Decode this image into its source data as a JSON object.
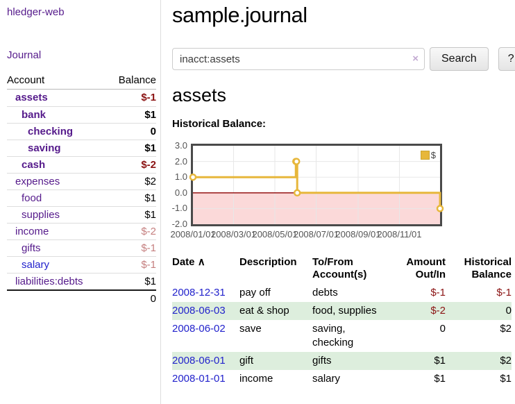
{
  "app": {
    "title": "hledger-web",
    "nav_journal": "Journal"
  },
  "colors": {
    "link_purple": "#551A8B",
    "link_blue": "#2222cc",
    "negative_strong": "#8b1313",
    "negative_soft": "#c57f7f",
    "row_green": "#ddeedd",
    "chart_line": "#E7B73B",
    "chart_negative_fill": "#fbd9d9",
    "chart_zero_line": "#8b0000"
  },
  "sidebar": {
    "accounts_table": {
      "headers": [
        "Account",
        "Balance"
      ],
      "rows": [
        {
          "name": "assets",
          "name_class": "d1 bold",
          "balance": "$-1",
          "balance_class": "bold neg"
        },
        {
          "name": "bank",
          "name_class": "d2 bold",
          "balance": "$1",
          "balance_class": "bold"
        },
        {
          "name": "checking",
          "name_class": "d3 bold",
          "balance": "0",
          "balance_class": "bold"
        },
        {
          "name": "saving",
          "name_class": "d3 bold",
          "balance": "$1",
          "balance_class": "bold"
        },
        {
          "name": "cash",
          "name_class": "d2 bold",
          "balance": "$-2",
          "balance_class": "bold neg"
        },
        {
          "name": "expenses",
          "name_class": "d1",
          "balance": "$2",
          "balance_class": ""
        },
        {
          "name": "food",
          "name_class": "d2",
          "balance": "$1",
          "balance_class": ""
        },
        {
          "name": "supplies",
          "name_class": "d2",
          "balance": "$1",
          "balance_class": ""
        },
        {
          "name": "income",
          "name_class": "d1",
          "balance": "$-2",
          "balance_class": "neg-soft"
        },
        {
          "name": "gifts",
          "name_class": "d2",
          "balance": "$-1",
          "balance_class": "neg-soft"
        },
        {
          "name": "salary",
          "name_class": "d2 blue",
          "balance": "$-1",
          "balance_class": "neg-soft"
        },
        {
          "name": "liabilities:debts",
          "name_class": "d1",
          "balance": "$1",
          "balance_class": ""
        }
      ],
      "total": "0"
    }
  },
  "header": {
    "title": "sample.journal"
  },
  "search": {
    "query": "inacct:assets",
    "clear_icon": "×",
    "button_label": "Search",
    "help_label": "?"
  },
  "account_page": {
    "heading": "assets",
    "chart_label": "Historical Balance:"
  },
  "chart_data": {
    "type": "line",
    "title": "Historical Balance",
    "step": true,
    "series": [
      {
        "name": "$",
        "points": [
          [
            "2008-01-01",
            1
          ],
          [
            "2008-06-01",
            2
          ],
          [
            "2008-06-02",
            2
          ],
          [
            "2008-06-03",
            0
          ],
          [
            "2008-12-31",
            -1
          ]
        ]
      }
    ],
    "xlim": [
      "2008-01-01",
      "2008-12-31"
    ],
    "ylim": [
      -2,
      3
    ],
    "x_ticks": [
      "2008/01/01",
      "2008/03/01",
      "2008/05/01",
      "2008/07/01",
      "2008/09/01",
      "2008/11/01"
    ],
    "y_ticks": [
      "3.0",
      "2.0",
      "1.0",
      "0.0",
      "-1.0",
      "-2.0"
    ],
    "grid": true,
    "legend_position": "top-right",
    "negative_region_shaded": true
  },
  "register_table": {
    "headers": [
      "Date",
      "Description",
      "To/From Account(s)",
      "Amount Out/In",
      "Historical Balance"
    ],
    "sort_icon": "∧",
    "rows": [
      {
        "date": "2008-12-31",
        "description": "pay off",
        "accounts": "debts",
        "amount": "$-1",
        "amount_class": "neg",
        "balance": "$-1",
        "balance_class": "neg"
      },
      {
        "date": "2008-06-03",
        "description": "eat & shop",
        "accounts": "food, supplies",
        "amount": "$-2",
        "amount_class": "neg",
        "balance": "0",
        "balance_class": ""
      },
      {
        "date": "2008-06-02",
        "description": "save",
        "accounts": "saving, checking",
        "amount": "0",
        "amount_class": "",
        "balance": "$2",
        "balance_class": ""
      },
      {
        "date": "2008-06-01",
        "description": "gift",
        "accounts": "gifts",
        "amount": "$1",
        "amount_class": "",
        "balance": "$2",
        "balance_class": ""
      },
      {
        "date": "2008-01-01",
        "description": "income",
        "accounts": "salary",
        "amount": "$1",
        "amount_class": "",
        "balance": "$1",
        "balance_class": ""
      }
    ]
  }
}
